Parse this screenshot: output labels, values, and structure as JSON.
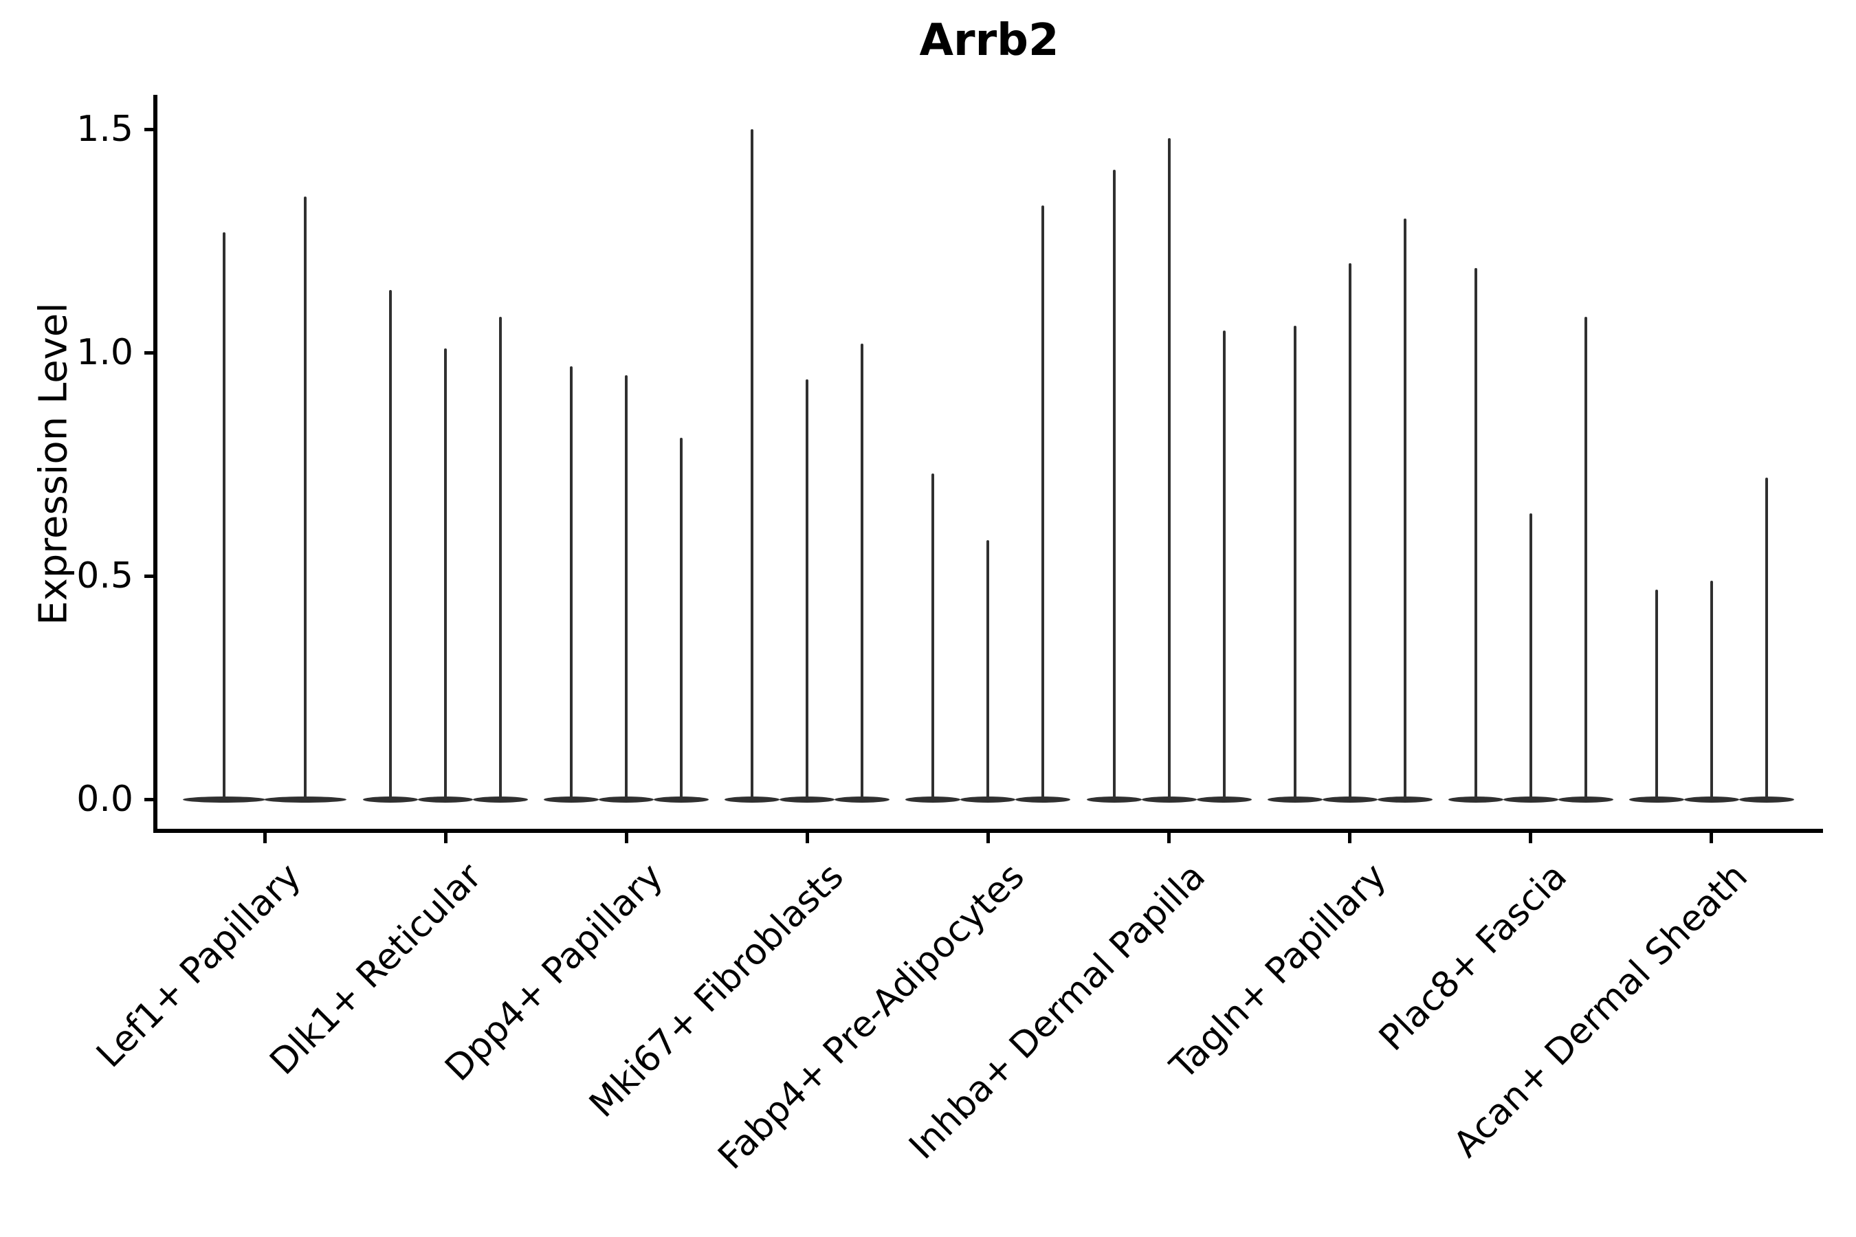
{
  "chart_data": {
    "type": "violin",
    "title": "Arrb2",
    "ylabel": "Expression Level",
    "xlabel": "",
    "yticks": [
      0.0,
      0.5,
      1.0,
      1.5
    ],
    "ylim": [
      -0.07,
      1.57
    ],
    "grid": false,
    "legend": false,
    "violin_color": "#303030",
    "axis_color": "#000000",
    "categories": [
      "Lef1+ Papillary",
      "Dlk1+ Reticular",
      "Dpp4+ Papillary",
      "Mki67+ Fibroblasts",
      "Fabp4+ Pre-Adipocytes",
      "Inhba+ Dermal Papilla",
      "Tagln+ Papillary",
      "Plac8+ Fascia",
      "Acan+ Dermal Sheath"
    ],
    "groups": [
      {
        "category": "Lef1+ Papillary",
        "violin_maxima": [
          1.27,
          1.35
        ]
      },
      {
        "category": "Dlk1+ Reticular",
        "violin_maxima": [
          1.14,
          1.01,
          1.08
        ]
      },
      {
        "category": "Dpp4+ Papillary",
        "violin_maxima": [
          0.97,
          0.95,
          0.81
        ]
      },
      {
        "category": "Mki67+ Fibroblasts",
        "violin_maxima": [
          1.5,
          0.94,
          1.02
        ]
      },
      {
        "category": "Fabp4+ Pre-Adipocytes",
        "violin_maxima": [
          0.73,
          0.58,
          1.33
        ]
      },
      {
        "category": "Inhba+ Dermal Papilla",
        "violin_maxima": [
          1.41,
          1.48,
          1.05
        ]
      },
      {
        "category": "Tagln+ Papillary",
        "violin_maxima": [
          1.06,
          1.2,
          1.3
        ]
      },
      {
        "category": "Plac8+ Fascia",
        "violin_maxima": [
          1.19,
          0.64,
          1.08
        ]
      },
      {
        "category": "Acan+ Dermal Sheath",
        "violin_maxima": [
          0.47,
          0.49,
          0.72
        ]
      }
    ],
    "description": "Violin plot; each violin is flat at 0 with a thin density spike up to its maximum expression value."
  }
}
